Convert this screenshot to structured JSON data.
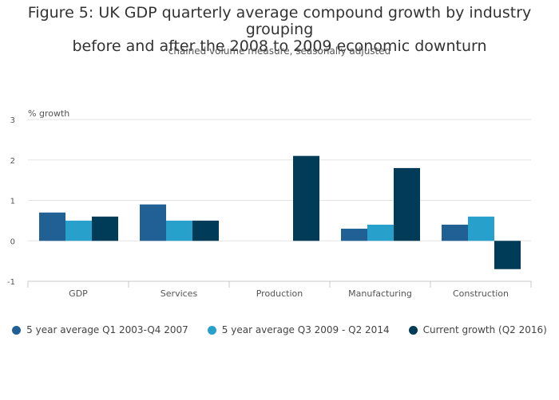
{
  "chart_data": {
    "type": "bar",
    "title": "Figure 5: UK GDP quarterly average compound growth by industry grouping before and after the 2008 to 2009 economic downturn",
    "title_lines": [
      "Figure 5: UK GDP quarterly average compound growth by industry grouping",
      "before and after the 2008 to 2009 economic downturn"
    ],
    "subtitle": "chained volume measure, seasonally adjusted",
    "ylabel": "% growth",
    "xlabel": "",
    "ylim": [
      -1,
      3
    ],
    "yticks": [
      3,
      2,
      1,
      0,
      -1
    ],
    "grid": true,
    "legend_position": "bottom",
    "categories": [
      "GDP",
      "Services",
      "Production",
      "Manufacturing",
      "Construction"
    ],
    "series": [
      {
        "name": "5 year average Q1 2003-Q4 2007",
        "color": "#206095",
        "values": [
          0.7,
          0.9,
          0.0,
          0.3,
          0.4
        ]
      },
      {
        "name": "5 year average Q3 2009 - Q2 2014",
        "color": "#27a0cc",
        "values": [
          0.5,
          0.5,
          0.0,
          0.4,
          0.6
        ]
      },
      {
        "name": "Current growth (Q2 2016)",
        "color": "#003c57",
        "values": [
          0.6,
          0.5,
          2.1,
          1.8,
          -0.7
        ]
      }
    ]
  }
}
